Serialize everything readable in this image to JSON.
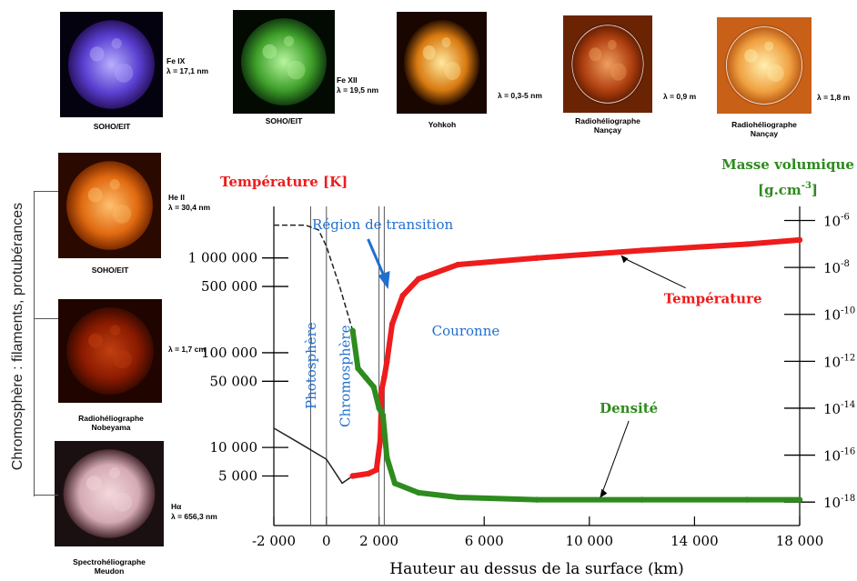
{
  "top_images": [
    {
      "id": "eit171",
      "label": "SOHO/EIT",
      "wavelength": "Fe IX\nλ = 17,1 nm",
      "colors": [
        "#b8b0ff",
        "#5a3fd0",
        "#2a1466"
      ]
    },
    {
      "id": "eit195",
      "label": "SOHO/EIT",
      "wavelength": "Fe XII\nλ = 19,5 nm",
      "colors": [
        "#b9f5a0",
        "#3fa02a",
        "#123d10"
      ]
    },
    {
      "id": "yohkoh",
      "label": "Yohkoh",
      "wavelength": "λ = 0,3-5 nm",
      "colors": [
        "#ffe9a0",
        "#d87a10",
        "#2a1000"
      ]
    },
    {
      "id": "nancay09",
      "label": "Radiohéliographe\nNançay",
      "wavelength": "λ = 0,9 m",
      "colors": [
        "#f0a060",
        "#b04010",
        "#5a1a00"
      ]
    },
    {
      "id": "nancay18",
      "label": "Radiohéliographe\nNançay",
      "wavelength": "λ = 1,8 m",
      "colors": [
        "#fff0b0",
        "#f0a040",
        "#b05010"
      ]
    }
  ],
  "side_images": [
    {
      "id": "eit304",
      "label": "SOHO/EIT",
      "wavelength": "He II\nλ = 30,4 nm",
      "colors": [
        "#ffc070",
        "#e06a10",
        "#7a2a00"
      ]
    },
    {
      "id": "nobeyama",
      "label": "Radiohéliographe\nNobeyama",
      "wavelength": "λ = 1,7 cm",
      "colors": [
        "#c04010",
        "#8a1a00",
        "#3a0a00"
      ]
    },
    {
      "id": "meudon",
      "label": "Spectrohéliographe\nMeudon",
      "wavelength": "Hα\nλ = 656,3 nm",
      "colors": [
        "#f4d8dc",
        "#d4aab4",
        "#4a2a30"
      ]
    }
  ],
  "side_title": "Chromosphère : filaments, protubérances",
  "colors": {
    "temperature": "#ee1c1c",
    "density": "#2e8b1e",
    "annotation": "#1f6fd0",
    "axis": "#000000"
  },
  "chart_data": {
    "type": "line",
    "xlabel": "Hauteur au dessus de la surface (km)",
    "x_ticks": [
      -2000,
      0,
      2000,
      6000,
      10000,
      14000,
      18000
    ],
    "x_tick_labels": [
      "-2 000",
      "0",
      "2 000",
      "6 000",
      "10 000",
      "14 000",
      "18 000"
    ],
    "xlim": [
      -2000,
      18000
    ],
    "left_axis": {
      "title": "Température [K]",
      "scale": "log",
      "ylim": [
        1500,
        3500000
      ],
      "ticks": [
        5000,
        10000,
        50000,
        100000,
        500000,
        1000000
      ],
      "tick_labels": [
        "5 000",
        "10 000",
        "50 000",
        "100 000",
        "500 000",
        "1 000 000"
      ]
    },
    "right_axis": {
      "title": "Masse volumique",
      "unit": "[g.cm",
      "unit_exp": "-3",
      "unit_close": "]",
      "scale": "log",
      "ylim_exp": [
        -19,
        -5.4
      ],
      "ticks": [
        -6,
        -8,
        -10,
        -12,
        -14,
        -16,
        -18
      ],
      "tick_base": "10"
    },
    "series": [
      {
        "name": "Température",
        "axis": "left",
        "points": [
          [
            1000,
            5000
          ],
          [
            1600,
            5300
          ],
          [
            1900,
            5800
          ],
          [
            2050,
            12000
          ],
          [
            2100,
            40000
          ],
          [
            2200,
            55000
          ],
          [
            2300,
            80000
          ],
          [
            2500,
            200000
          ],
          [
            2900,
            400000
          ],
          [
            3500,
            600000
          ],
          [
            5000,
            850000
          ],
          [
            8000,
            1000000
          ],
          [
            12000,
            1200000
          ],
          [
            16000,
            1400000
          ],
          [
            18000,
            1550000
          ]
        ]
      },
      {
        "name": "Densité",
        "axis": "right",
        "points": [
          [
            1000,
            -10.7
          ],
          [
            1200,
            -12.3
          ],
          [
            1500,
            -12.7
          ],
          [
            1800,
            -13.1
          ],
          [
            2000,
            -14
          ],
          [
            2150,
            -14.3
          ],
          [
            2300,
            -16.1
          ],
          [
            2600,
            -17.2
          ],
          [
            3500,
            -17.6
          ],
          [
            5000,
            -17.8
          ],
          [
            8000,
            -17.9
          ],
          [
            12000,
            -17.9
          ],
          [
            16000,
            -17.9
          ],
          [
            18000,
            -17.9
          ]
        ]
      }
    ],
    "measured_curves": [
      {
        "name": "temperature-low",
        "axis": "left",
        "style": "solid",
        "points": [
          [
            -2000,
            16000
          ],
          [
            -1000,
            11000
          ],
          [
            0,
            7500
          ],
          [
            600,
            4200
          ],
          [
            1000,
            5000
          ]
        ]
      },
      {
        "name": "density-low",
        "axis": "right",
        "style": "dashed",
        "points": [
          [
            -2000,
            -6.2
          ],
          [
            -800,
            -6.2
          ],
          [
            -300,
            -6.4
          ],
          [
            0,
            -7.1
          ],
          [
            500,
            -8.8
          ],
          [
            1000,
            -10.7
          ]
        ]
      }
    ],
    "boundaries": [
      -600,
      0,
      2000,
      2200
    ],
    "annotations": [
      {
        "text": "Région de transition",
        "x": 2000,
        "color": "annotation"
      },
      {
        "text": "Photosphère",
        "x": -300,
        "color": "annotation",
        "rotated": true
      },
      {
        "text": "Chromosphère",
        "x": 1000,
        "color": "annotation",
        "rotated": true
      },
      {
        "text": "Couronne",
        "x": 5300,
        "color": "annotation"
      },
      {
        "text": "Température",
        "series": "Température",
        "color": "temperature",
        "label_x": 14700,
        "label_y": 370000,
        "arrow_to": [
          11200,
          1100000
        ]
      },
      {
        "text": "Densité",
        "series": "Densité",
        "color": "density",
        "label_x": 11500,
        "label_y_exp": -14,
        "arrow_to": [
          10400,
          -17.9
        ]
      }
    ]
  }
}
